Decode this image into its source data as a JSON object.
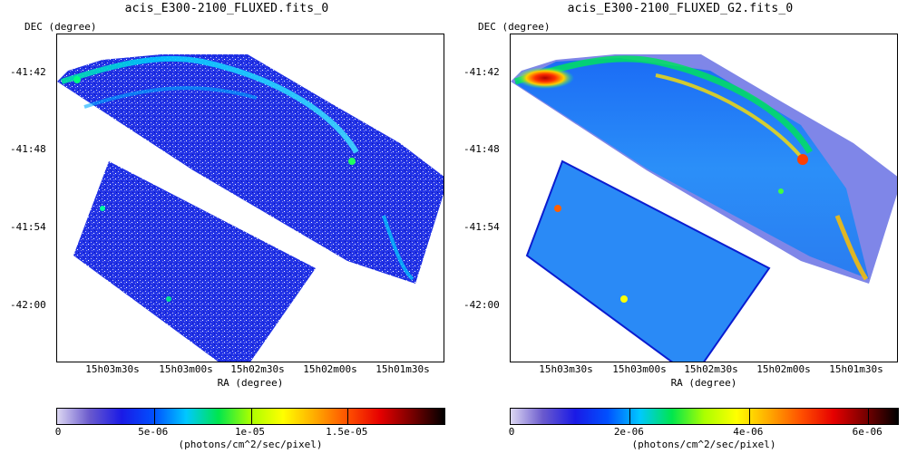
{
  "chart_data": [
    {
      "type": "heatmap",
      "title": "acis_E300-2100_FLUXED.fits_0",
      "xlabel": "RA (degree)",
      "ylabel": "DEC (degree)",
      "x_ticks": [
        "15h03m30s",
        "15h03m00s",
        "15h02m30s",
        "15h02m00s",
        "15h01m30s"
      ],
      "y_ticks": [
        "-41:42",
        "-41:48",
        "-41:54",
        "-42:00"
      ],
      "colorbar": {
        "label": "(photons/cm^2/sec/pixel)",
        "ticks": [
          "0",
          "5e-06",
          "1e-05",
          "1.5e-05"
        ],
        "tick_values": [
          0,
          5e-06,
          1e-05,
          1.5e-05
        ],
        "range": [
          0,
          2e-05
        ]
      },
      "colormap": [
        "#dcd7f2",
        "#6a5acd",
        "#1a1ae6",
        "#0050ff",
        "#00c8ff",
        "#00e64d",
        "#aaff00",
        "#ffff00",
        "#ffaa00",
        "#ff5000",
        "#e60000",
        "#780000",
        "#000000"
      ],
      "background": "#2a3be8"
    },
    {
      "type": "heatmap",
      "title": "acis_E300-2100_FLUXED_G2.fits_0",
      "xlabel": "RA (degree)",
      "ylabel": "DEC (degree)",
      "x_ticks": [
        "15h03m30s",
        "15h03m00s",
        "15h02m30s",
        "15h02m00s",
        "15h01m30s"
      ],
      "y_ticks": [
        "-41:42",
        "-41:48",
        "-41:54",
        "-42:00"
      ],
      "colorbar": {
        "label": "(photons/cm^2/sec/pixel)",
        "ticks": [
          "0",
          "2e-06",
          "4e-06",
          "6e-06"
        ],
        "tick_values": [
          0,
          2e-06,
          4e-06,
          6e-06
        ],
        "range": [
          0,
          6.5e-06
        ]
      },
      "colormap": [
        "#dcd7f2",
        "#6a5acd",
        "#1a1ae6",
        "#0050ff",
        "#00c8ff",
        "#00e64d",
        "#aaff00",
        "#ffff00",
        "#ffaa00",
        "#ff5000",
        "#e60000",
        "#780000",
        "#000000"
      ],
      "background": "#2f7df5"
    }
  ]
}
